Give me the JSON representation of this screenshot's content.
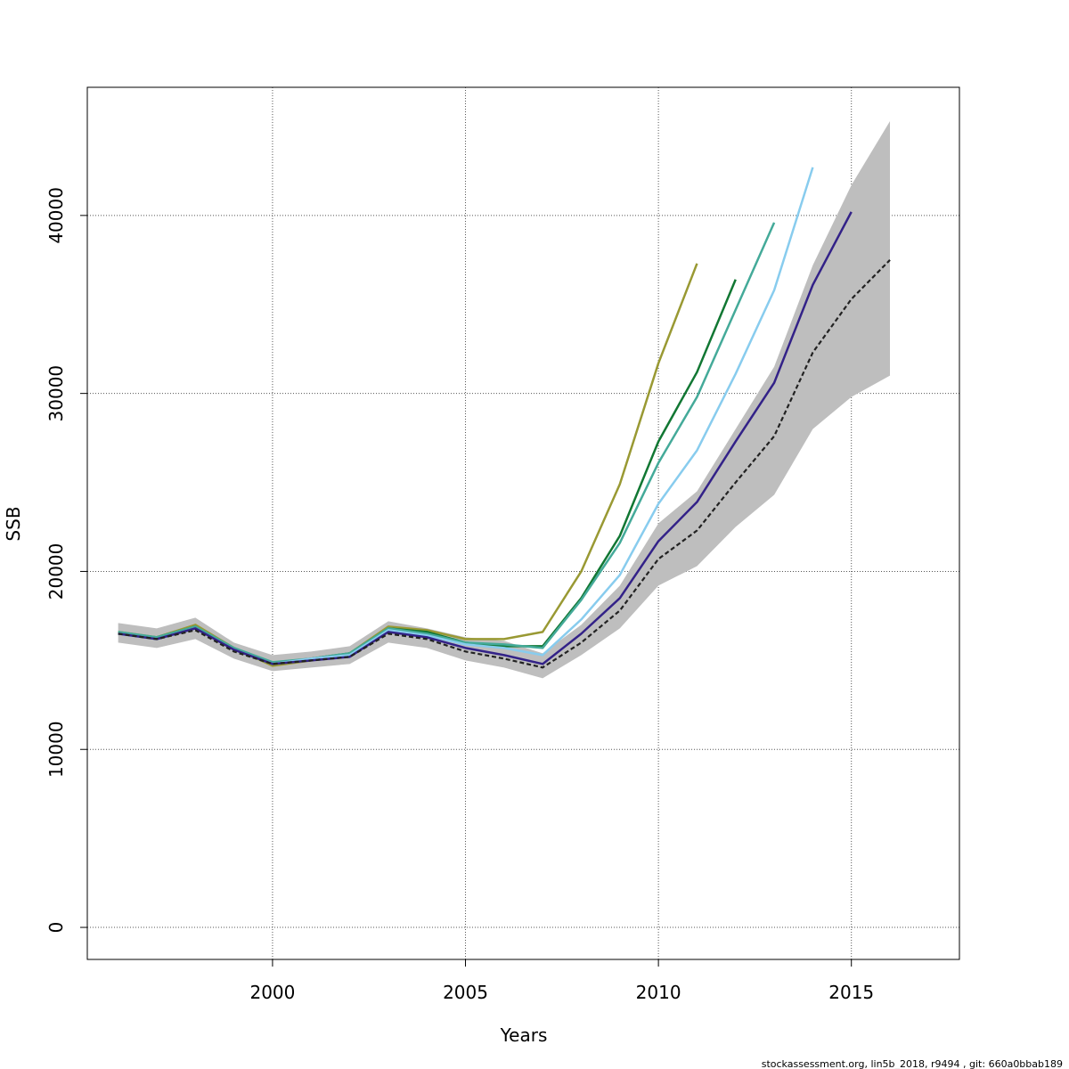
{
  "chart_data": {
    "type": "line",
    "title": "",
    "xlabel": "Years",
    "ylabel": "SSB",
    "xlim": [
      1995.2,
      2017.8
    ],
    "ylim": [
      -1800,
      47200
    ],
    "xticks": [
      2000,
      2005,
      2010,
      2015
    ],
    "yticks": [
      0,
      10000,
      20000,
      30000,
      40000
    ],
    "grid": true,
    "legend": "none",
    "colors": {
      "band": "#bebebe",
      "main": "#222222",
      "series": [
        "#332288",
        "#88ccee",
        "#44aa99",
        "#117733",
        "#999933"
      ]
    },
    "band": {
      "x": [
        1996,
        1997,
        1998,
        1999,
        2000,
        2001,
        2002,
        2003,
        2004,
        2005,
        2006,
        2007,
        2008,
        2009,
        2010,
        2011,
        2012,
        2013,
        2014,
        2015,
        2016
      ],
      "lower": [
        16000,
        15700,
        16200,
        15100,
        14400,
        14600,
        14800,
        16000,
        15700,
        15000,
        14600,
        14000,
        15300,
        16800,
        19200,
        20300,
        22500,
        24300,
        28000,
        29800,
        31000
      ],
      "upper": [
        17100,
        16800,
        17400,
        16000,
        15300,
        15500,
        15800,
        17200,
        16800,
        16300,
        16100,
        15400,
        17000,
        19200,
        22700,
        24500,
        28000,
        31500,
        37200,
        41700,
        45300
      ]
    },
    "main_series": {
      "x": [
        1996,
        1997,
        1998,
        1999,
        2000,
        2001,
        2002,
        2003,
        2004,
        2005,
        2006,
        2007,
        2008,
        2009,
        2010,
        2011,
        2012,
        2013,
        2014,
        2015,
        2016
      ],
      "values": [
        16500,
        16200,
        16700,
        15500,
        14800,
        15000,
        15200,
        16500,
        16200,
        15500,
        15100,
        14600,
        16000,
        17800,
        20700,
        22300,
        25000,
        27600,
        32300,
        35300,
        37500
      ]
    },
    "series": [
      {
        "x": [
          1996,
          1997,
          1998,
          1999,
          2000,
          2001,
          2002,
          2003,
          2004,
          2005,
          2006,
          2007,
          2008,
          2009,
          2010,
          2011,
          2012,
          2013,
          2014,
          2015
        ],
        "values": [
          16500,
          16200,
          16800,
          15600,
          14800,
          15000,
          15200,
          16600,
          16300,
          15700,
          15300,
          14800,
          16500,
          18500,
          21700,
          23900,
          27300,
          30600,
          36100,
          40200
        ]
      },
      {
        "x": [
          1996,
          1997,
          1998,
          1999,
          2000,
          2001,
          2002,
          2003,
          2004,
          2005,
          2006,
          2007,
          2008,
          2009,
          2010,
          2011,
          2012,
          2013,
          2014
        ],
        "values": [
          16500,
          16200,
          16800,
          15600,
          14800,
          15100,
          15300,
          16700,
          16400,
          15900,
          15700,
          15300,
          17300,
          19800,
          23800,
          26800,
          31100,
          35800,
          42700
        ]
      },
      {
        "x": [
          1996,
          1997,
          1998,
          1999,
          2000,
          2001,
          2002,
          2003,
          2004,
          2005,
          2006,
          2007,
          2008,
          2009,
          2010,
          2011,
          2012,
          2013
        ],
        "values": [
          16600,
          16300,
          16900,
          15700,
          14900,
          15100,
          15400,
          16800,
          16500,
          16000,
          15900,
          15700,
          18400,
          21600,
          26100,
          29800,
          34700,
          39600
        ]
      },
      {
        "x": [
          1996,
          1997,
          1998,
          1999,
          2000,
          2001,
          2002,
          2003,
          2004,
          2005,
          2006,
          2007,
          2008,
          2009,
          2010,
          2011,
          2012
        ],
        "values": [
          16500,
          16300,
          16900,
          15600,
          14800,
          15100,
          15400,
          16800,
          16600,
          16000,
          15800,
          15800,
          18500,
          22000,
          27300,
          31200,
          36400
        ]
      },
      {
        "x": [
          1996,
          1997,
          1998,
          1999,
          2000,
          2001,
          2002,
          2003,
          2004,
          2005,
          2006,
          2007,
          2008,
          2009,
          2010,
          2011
        ],
        "values": [
          16600,
          16300,
          17000,
          15700,
          14700,
          15000,
          15400,
          16900,
          16700,
          16200,
          16200,
          16600,
          20000,
          24900,
          31700,
          37300
        ]
      }
    ]
  },
  "footer": "stockassessment.org, lin5b_2018, r9494 , git: 660a0bbab189"
}
